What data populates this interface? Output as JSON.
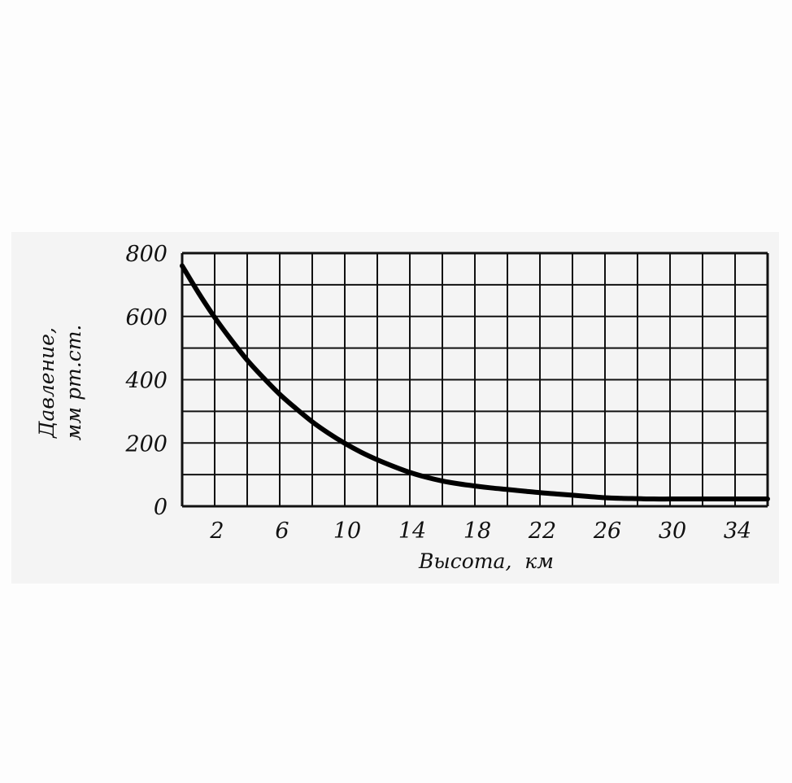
{
  "chart_data": {
    "type": "line",
    "title": "",
    "xlabel": "Высота,  км",
    "ylabel_line1": "Давление,",
    "ylabel_line2": "мм рт.ст.",
    "xlim": [
      0,
      36
    ],
    "ylim": [
      0,
      800
    ],
    "x_ticks": [
      2,
      6,
      10,
      14,
      18,
      22,
      26,
      30,
      34
    ],
    "y_ticks": [
      0,
      200,
      400,
      600,
      800
    ],
    "grid": true,
    "grid_x_step": 2,
    "grid_y_step": 100,
    "series": [
      {
        "x": [
          0,
          1,
          2,
          3,
          4,
          5,
          6,
          7,
          8,
          9,
          10,
          11,
          12,
          13,
          14,
          15,
          16,
          17,
          18,
          19,
          20,
          21,
          22,
          23,
          24,
          25,
          26,
          27,
          28,
          29,
          30,
          31,
          32,
          33,
          34,
          35,
          36
        ],
        "values": [
          760,
          675,
          597,
          527,
          462,
          406,
          354,
          309,
          267,
          231,
          199,
          171,
          147,
          126,
          107,
          92,
          80,
          71,
          64,
          58,
          53,
          48,
          43,
          39,
          35,
          31,
          27,
          25,
          24,
          23,
          23,
          23,
          23,
          23,
          23,
          23,
          23
        ]
      }
    ],
    "line_color": "#000000",
    "grid_color": "#111111"
  }
}
